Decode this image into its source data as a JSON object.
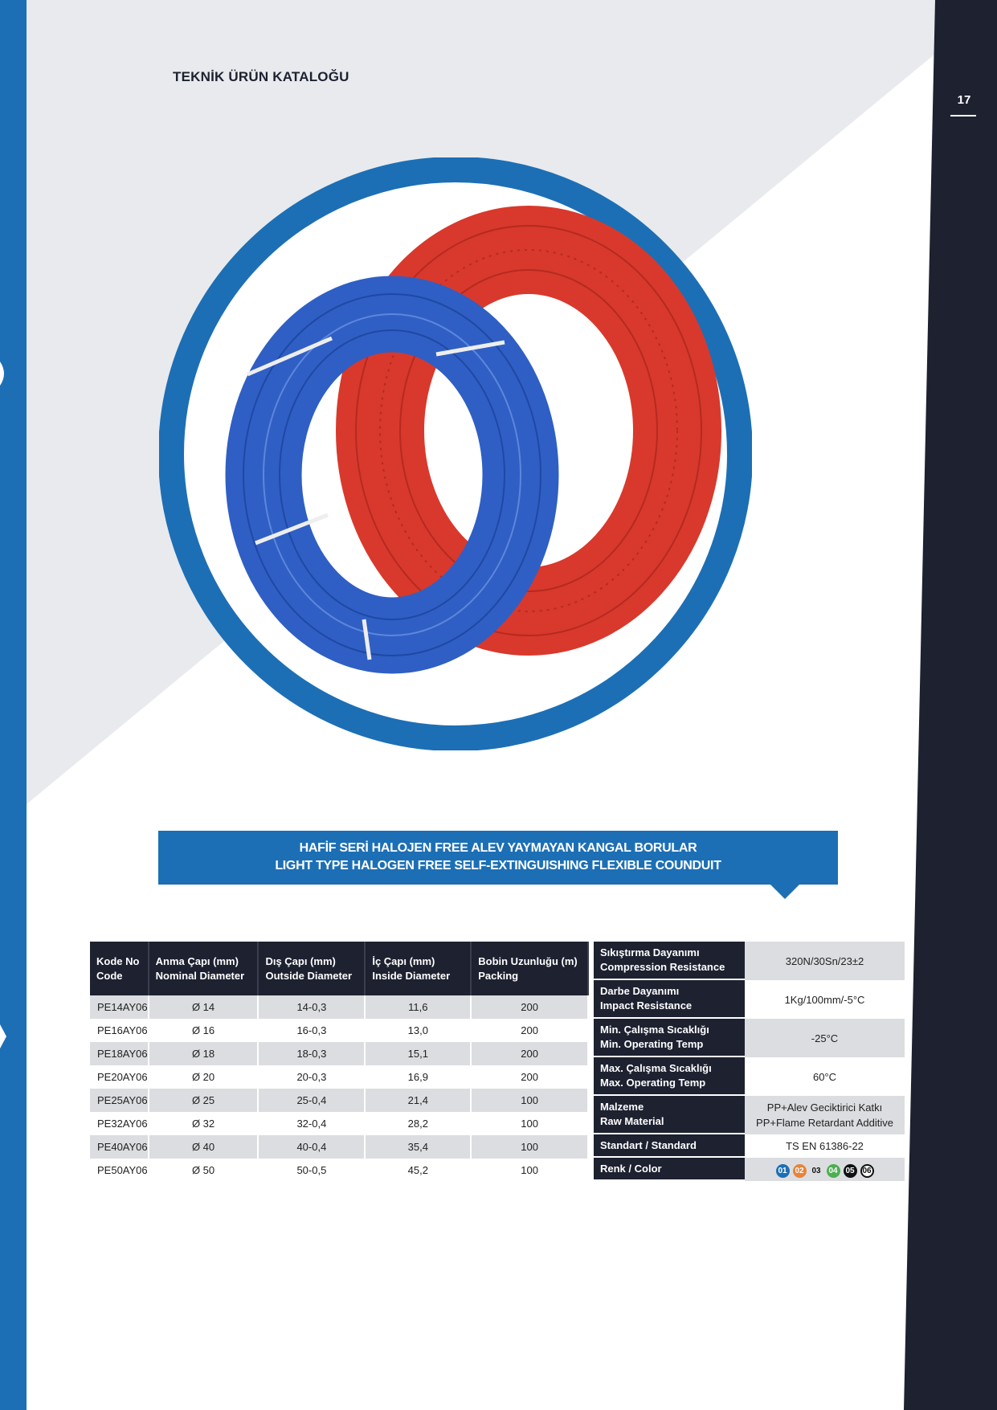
{
  "header": {
    "title": "TEKNİK ÜRÜN KATALOĞU",
    "page_number": "17"
  },
  "colors": {
    "brand_blue": "#1c6fb5",
    "navy": "#1d2130",
    "light_gray": "#e8eaed",
    "coil_blue": "#2f5fc4",
    "coil_red": "#d8392c"
  },
  "product_image": {
    "icon": "blue-and-red-conduit-coils"
  },
  "banner": {
    "line1": "HAFİF SERİ HALOJEN FREE ALEV YAYMAYAN KANGAL BORULAR",
    "line2": "LIGHT TYPE HALOGEN FREE SELF-EXTINGUISHING FLEXIBLE COUNDUIT"
  },
  "spec_table": {
    "headers": [
      {
        "tr": "Kode No",
        "en": "Code"
      },
      {
        "tr": "Anma Çapı (mm)",
        "en": "Nominal Diameter"
      },
      {
        "tr": "Dış Çapı (mm)",
        "en": "Outside Diameter"
      },
      {
        "tr": "İç Çapı (mm)",
        "en": "Inside Diameter"
      },
      {
        "tr": "Bobin Uzunluğu (m)",
        "en": "Packing"
      }
    ],
    "rows": [
      [
        "PE14AY06",
        "Ø 14",
        "14-0,3",
        "11,6",
        "200"
      ],
      [
        "PE16AY06",
        "Ø 16",
        "16-0,3",
        "13,0",
        "200"
      ],
      [
        "PE18AY06",
        "Ø 18",
        "18-0,3",
        "15,1",
        "200"
      ],
      [
        "PE20AY06",
        "Ø 20",
        "20-0,3",
        "16,9",
        "200"
      ],
      [
        "PE25AY06",
        "Ø 25",
        "25-0,4",
        "21,4",
        "100"
      ],
      [
        "PE32AY06",
        "Ø 32",
        "32-0,4",
        "28,2",
        "100"
      ],
      [
        "PE40AY06",
        "Ø 40",
        "40-0,4",
        "35,4",
        "100"
      ],
      [
        "PE50AY06",
        "Ø 50",
        "50-0,5",
        "45,2",
        "100"
      ]
    ]
  },
  "properties": [
    {
      "tr": "Sıkıştırma Dayanımı",
      "en": "Compression Resistance",
      "value": "320N/30Sn/23±2"
    },
    {
      "tr": "Darbe Dayanımı",
      "en": "Impact Resistance",
      "value": "1Kg/100mm/-5°C"
    },
    {
      "tr": "Min. Çalışma Sıcaklığı",
      "en": "Min. Operating Temp",
      "value": "-25°C"
    },
    {
      "tr": "Max. Çalışma Sıcaklığı",
      "en": "Max. Operating Temp",
      "value": "60°C"
    },
    {
      "tr": "Malzeme",
      "en": "Raw Material",
      "value": "PP+Alev Geciktirici Katkı",
      "value2": "PP+Flame Retardant Additive"
    },
    {
      "label": "Standart / Standard",
      "value": "TS EN 61386-22"
    }
  ],
  "color_row": {
    "label": "Renk / Color",
    "options": [
      {
        "code": "01",
        "color": "#1c6fb5"
      },
      {
        "code": "02",
        "color": "#e8833a"
      },
      {
        "code": "03",
        "color": "none"
      },
      {
        "code": "04",
        "color": "#4caf50"
      },
      {
        "code": "05",
        "color": "#111111"
      },
      {
        "code": "06",
        "color": "#ffffff"
      }
    ]
  }
}
